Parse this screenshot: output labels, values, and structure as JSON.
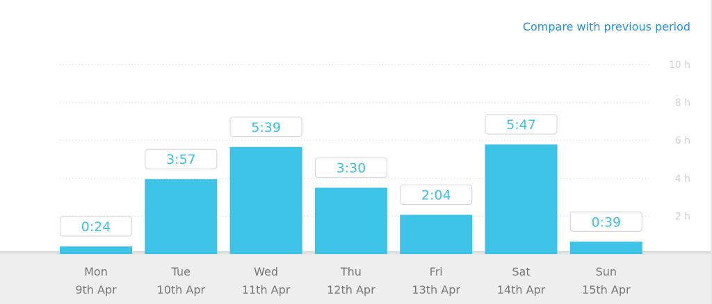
{
  "header": {
    "compare_label": "Compare with previous period"
  },
  "colors": {
    "bar": "#3dc3e6",
    "value_text": "#3cc1e5",
    "link": "#2b8fd6",
    "grid": "#d9d9d9"
  },
  "chart_data": {
    "type": "bar",
    "title": "",
    "xlabel": "",
    "ylabel": "",
    "ylim": [
      0,
      10
    ],
    "yticks": [
      "2 h",
      "4 h",
      "6 h",
      "8 h",
      "10 h"
    ],
    "grid": true,
    "categories": [
      "Mon",
      "Tue",
      "Wed",
      "Thu",
      "Fri",
      "Sat",
      "Sun"
    ],
    "dates": [
      "9th Apr",
      "10th Apr",
      "11th Apr",
      "12th Apr",
      "13th Apr",
      "14th Apr",
      "15th Apr"
    ],
    "labels": [
      "0:24",
      "3:57",
      "5:39",
      "3:30",
      "2:04",
      "5:47",
      "0:39"
    ],
    "values": [
      0.4,
      3.95,
      5.65,
      3.5,
      2.07,
      5.78,
      0.65
    ]
  }
}
